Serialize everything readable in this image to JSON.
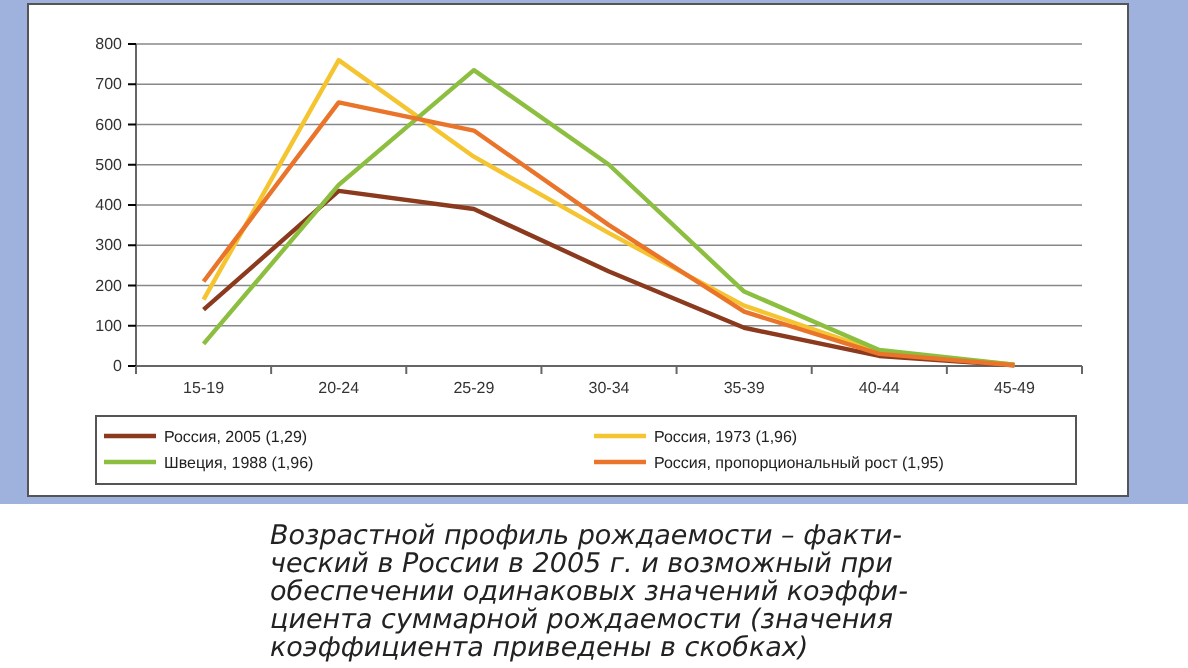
{
  "chart_data": {
    "type": "line",
    "title": "Возрастной профиль рождаемости – факти-\nческий в России в 2005 г. и возможный при\nобеспечении одинаковых значений коэффи-\nциента суммарной рождаемости (значения\nкоэффициента приведены в скобках)",
    "categories": [
      "15-19",
      "20-24",
      "25-29",
      "30-34",
      "35-39",
      "40-44",
      "45-49"
    ],
    "series": [
      {
        "name": "Россия, 2005 (1,29)",
        "color": "#8b3a1e",
        "values": [
          140,
          435,
          390,
          235,
          95,
          25,
          2
        ]
      },
      {
        "name": "Россия, 1973 (1,96)",
        "color": "#f5c431",
        "values": [
          165,
          760,
          520,
          330,
          150,
          35,
          3
        ]
      },
      {
        "name": "Швеция, 1988 (1,96)",
        "color": "#8cbf3f",
        "values": [
          55,
          450,
          735,
          500,
          185,
          40,
          3
        ]
      },
      {
        "name": "Россия, пропорциональный рост (1,95)",
        "color": "#e9742a",
        "values": [
          210,
          655,
          585,
          350,
          135,
          30,
          2
        ]
      }
    ],
    "ylim": [
      0,
      800
    ],
    "yticks": [
      0,
      100,
      200,
      300,
      400,
      500,
      600,
      700,
      800
    ],
    "grid": "y",
    "legend": "bottom",
    "marker": "none",
    "line_style": "solid"
  }
}
